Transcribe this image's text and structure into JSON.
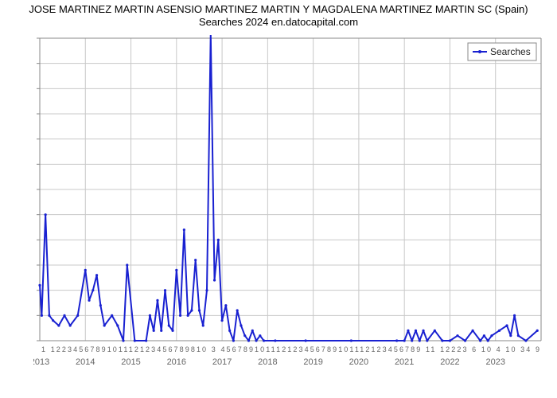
{
  "title_line1": "JOSE MARTINEZ MARTIN ASENSIO MARTINEZ MARTIN Y MAGDALENA MARTINEZ MARTIN SC (Spain)",
  "title_line2": "Searches 2024 en.datocapital.com",
  "chart": {
    "type": "line",
    "background_color": "#ffffff",
    "grid_color": "#c8c8c8",
    "axis_color": "#888888",
    "line_color": "#1921d1",
    "line_width": 2,
    "marker_color": "#1921d1",
    "x_start_year": 2013,
    "x_end_year": 2024,
    "months_per_year": 12,
    "ylim": [
      0,
      60
    ],
    "ytick_step": 5,
    "y_ticks": [
      0,
      5,
      10,
      15,
      20,
      25,
      30,
      35,
      40,
      45,
      50,
      55,
      60
    ],
    "year_ticks": [
      2013,
      2014,
      2015,
      2016,
      2017,
      2018,
      2019,
      2020,
      2021,
      2022,
      2023
    ],
    "month_labels_raw": "1 1223456789101112123456789810    3 456789101112123456789101112123456789      11       12223  6  10    4    10   34   9",
    "legend": {
      "label": "Searches",
      "position": "top-right"
    },
    "title_fontsize": 13,
    "tick_fontsize": 11,
    "series": {
      "name": "Searches",
      "data": [
        {
          "t": 0.0,
          "v": 11
        },
        {
          "t": 0.5,
          "v": 5
        },
        {
          "t": 1.5,
          "v": 25
        },
        {
          "t": 2.5,
          "v": 5
        },
        {
          "t": 3.5,
          "v": 4
        },
        {
          "t": 5.0,
          "v": 3
        },
        {
          "t": 6.5,
          "v": 5
        },
        {
          "t": 8.0,
          "v": 3
        },
        {
          "t": 10.0,
          "v": 5
        },
        {
          "t": 12.0,
          "v": 14
        },
        {
          "t": 13.0,
          "v": 8
        },
        {
          "t": 14.0,
          "v": 10
        },
        {
          "t": 15.0,
          "v": 13
        },
        {
          "t": 16.0,
          "v": 7
        },
        {
          "t": 17.0,
          "v": 3
        },
        {
          "t": 19.0,
          "v": 5
        },
        {
          "t": 20.5,
          "v": 3
        },
        {
          "t": 22.0,
          "v": 0
        },
        {
          "t": 23.0,
          "v": 15
        },
        {
          "t": 25.0,
          "v": 0
        },
        {
          "t": 28.0,
          "v": 0
        },
        {
          "t": 29.0,
          "v": 5
        },
        {
          "t": 30.0,
          "v": 2
        },
        {
          "t": 31.0,
          "v": 8
        },
        {
          "t": 32.0,
          "v": 2
        },
        {
          "t": 33.0,
          "v": 10
        },
        {
          "t": 34.0,
          "v": 3
        },
        {
          "t": 35.0,
          "v": 2
        },
        {
          "t": 36.0,
          "v": 14
        },
        {
          "t": 37.0,
          "v": 5
        },
        {
          "t": 38.0,
          "v": 22
        },
        {
          "t": 39.0,
          "v": 5
        },
        {
          "t": 40.0,
          "v": 6
        },
        {
          "t": 41.0,
          "v": 16
        },
        {
          "t": 42.0,
          "v": 6
        },
        {
          "t": 43.0,
          "v": 3
        },
        {
          "t": 44.0,
          "v": 10
        },
        {
          "t": 45.0,
          "v": 61
        },
        {
          "t": 46.0,
          "v": 12
        },
        {
          "t": 47.0,
          "v": 20
        },
        {
          "t": 48.0,
          "v": 4
        },
        {
          "t": 49.0,
          "v": 7
        },
        {
          "t": 50.0,
          "v": 2
        },
        {
          "t": 51.0,
          "v": 0
        },
        {
          "t": 52.0,
          "v": 6
        },
        {
          "t": 53.0,
          "v": 3
        },
        {
          "t": 54.0,
          "v": 1
        },
        {
          "t": 55.0,
          "v": 0
        },
        {
          "t": 56.0,
          "v": 2
        },
        {
          "t": 57.0,
          "v": 0
        },
        {
          "t": 58.0,
          "v": 1
        },
        {
          "t": 59.0,
          "v": 0
        },
        {
          "t": 62.0,
          "v": 0
        },
        {
          "t": 70.0,
          "v": 0
        },
        {
          "t": 82.0,
          "v": 0
        },
        {
          "t": 94.0,
          "v": 0
        },
        {
          "t": 96.0,
          "v": 0
        },
        {
          "t": 97.0,
          "v": 2
        },
        {
          "t": 98.0,
          "v": 0
        },
        {
          "t": 99.0,
          "v": 2
        },
        {
          "t": 100.0,
          "v": 0
        },
        {
          "t": 101.0,
          "v": 2
        },
        {
          "t": 102.0,
          "v": 0
        },
        {
          "t": 104.0,
          "v": 2
        },
        {
          "t": 106.0,
          "v": 0
        },
        {
          "t": 108.0,
          "v": 0
        },
        {
          "t": 110.0,
          "v": 1
        },
        {
          "t": 112.0,
          "v": 0
        },
        {
          "t": 114.0,
          "v": 2
        },
        {
          "t": 116.0,
          "v": 0
        },
        {
          "t": 117.0,
          "v": 1
        },
        {
          "t": 118.0,
          "v": 0
        },
        {
          "t": 119.0,
          "v": 1
        },
        {
          "t": 121.0,
          "v": 2
        },
        {
          "t": 123.0,
          "v": 3
        },
        {
          "t": 124.0,
          "v": 1
        },
        {
          "t": 125.0,
          "v": 5
        },
        {
          "t": 126.0,
          "v": 1
        },
        {
          "t": 128.0,
          "v": 0
        },
        {
          "t": 131.0,
          "v": 2
        }
      ]
    }
  }
}
